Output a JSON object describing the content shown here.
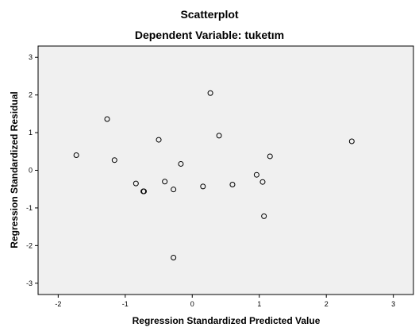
{
  "chart_data": {
    "type": "scatter",
    "title": "Scatterplot",
    "subtitle": "Dependent Variable: tuketım",
    "xlabel": "Regression Standardized Predicted Value",
    "ylabel": "Regression Standardized Residual",
    "xlim": [
      -2.3,
      3.3
    ],
    "ylim": [
      -3.3,
      3.3
    ],
    "xticks": [
      -2,
      -1,
      0,
      1,
      2,
      3
    ],
    "yticks": [
      -3,
      -2,
      -1,
      0,
      1,
      2,
      3
    ],
    "grid": false,
    "legend": "none",
    "plot_background": "#f0f0f0",
    "marker_color": "#000000",
    "points": [
      {
        "x": -1.73,
        "y": 0.4
      },
      {
        "x": -1.27,
        "y": 1.36
      },
      {
        "x": -1.16,
        "y": 0.27
      },
      {
        "x": -0.84,
        "y": -0.35
      },
      {
        "x": -0.73,
        "y": -0.56
      },
      {
        "x": -0.72,
        "y": -0.56
      },
      {
        "x": -0.5,
        "y": 0.81
      },
      {
        "x": -0.41,
        "y": -0.3
      },
      {
        "x": -0.28,
        "y": -0.51
      },
      {
        "x": -0.28,
        "y": -2.32
      },
      {
        "x": -0.17,
        "y": 0.17
      },
      {
        "x": 0.16,
        "y": -0.43
      },
      {
        "x": 0.27,
        "y": 2.05
      },
      {
        "x": 0.4,
        "y": 0.92
      },
      {
        "x": 0.6,
        "y": -0.38
      },
      {
        "x": 0.96,
        "y": -0.12
      },
      {
        "x": 1.05,
        "y": -0.31
      },
      {
        "x": 1.07,
        "y": -1.22
      },
      {
        "x": 1.16,
        "y": 0.37
      },
      {
        "x": 2.38,
        "y": 0.77
      }
    ]
  }
}
